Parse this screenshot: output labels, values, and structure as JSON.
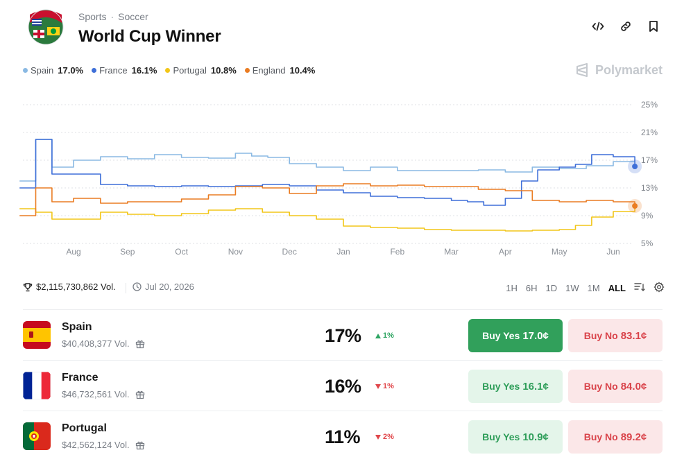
{
  "header": {
    "category": "Sports",
    "separator": "·",
    "subcategory": "Soccer",
    "title": "World Cup Winner"
  },
  "legend": [
    {
      "name": "Spain",
      "value": "17.0%",
      "color": "#8ab9e3"
    },
    {
      "name": "France",
      "value": "16.1%",
      "color": "#3e6fd8"
    },
    {
      "name": "Portugal",
      "value": "10.8%",
      "color": "#f2c618"
    },
    {
      "name": "England",
      "value": "10.4%",
      "color": "#ea7c22"
    }
  ],
  "brand": "Polymarket",
  "chart_data": {
    "type": "line",
    "x_ticks": [
      "Aug",
      "Sep",
      "Oct",
      "Nov",
      "Dec",
      "Jan",
      "Feb",
      "Mar",
      "Apr",
      "May",
      "Jun"
    ],
    "y_ticks": [
      "25%",
      "21%",
      "17%",
      "13%",
      "9%",
      "5%"
    ],
    "ylim": [
      5,
      25
    ],
    "grid": true,
    "series": [
      {
        "name": "Spain",
        "color": "#8ab9e3",
        "x": [
          0,
          0.3,
          0.6,
          1,
          1.5,
          2,
          2.5,
          3,
          3.5,
          4,
          4.3,
          4.6,
          5,
          5.5,
          6,
          6.5,
          7,
          7.5,
          8,
          8.5,
          9,
          9.5,
          10,
          10.5,
          11,
          11.4
        ],
        "values": [
          14,
          20,
          16,
          17,
          17.5,
          17.2,
          17.8,
          17.4,
          17.3,
          18,
          17.6,
          17.4,
          16.5,
          16,
          15.5,
          16,
          15.5,
          15.5,
          15.5,
          15.6,
          15.3,
          16,
          15.8,
          16.2,
          16.8,
          17
        ]
      },
      {
        "name": "France",
        "color": "#3e6fd8",
        "x": [
          0,
          0.3,
          0.6,
          1,
          1.5,
          2,
          2.5,
          3,
          3.5,
          4,
          4.5,
          5,
          5.5,
          6,
          6.5,
          7,
          7.5,
          8,
          8.3,
          8.6,
          9,
          9.3,
          9.6,
          10,
          10.3,
          10.6,
          11,
          11.4
        ],
        "values": [
          13,
          20,
          15,
          15,
          13.5,
          13.3,
          13.2,
          13.3,
          13.2,
          13.3,
          13.5,
          13.3,
          12.7,
          12.3,
          11.8,
          11.6,
          11.5,
          11.2,
          11,
          10.5,
          11.5,
          14,
          15.6,
          16,
          16.4,
          17.8,
          17.5,
          16.1
        ]
      },
      {
        "name": "Portugal",
        "color": "#f2c618",
        "x": [
          0,
          0.3,
          0.6,
          1,
          1.5,
          2,
          2.5,
          3,
          3.5,
          4,
          4.5,
          5,
          5.5,
          6,
          6.5,
          7,
          7.5,
          8,
          8.5,
          9,
          9.5,
          10,
          10.3,
          10.6,
          11,
          11.4
        ],
        "values": [
          10,
          9.5,
          8.5,
          8.5,
          9.5,
          9.2,
          9,
          9.3,
          9.8,
          10,
          9.5,
          9,
          8.5,
          7.5,
          7.3,
          7.2,
          7,
          6.9,
          6.9,
          6.8,
          6.9,
          7,
          7.6,
          8.8,
          9.6,
          10.8
        ]
      },
      {
        "name": "England",
        "color": "#ea7c22",
        "x": [
          0,
          0.3,
          0.6,
          1,
          1.5,
          2,
          2.5,
          3,
          3.5,
          4,
          4.5,
          5,
          5.5,
          6,
          6.5,
          7,
          7.5,
          8,
          8.5,
          9,
          9.5,
          10,
          10.5,
          11,
          11.4
        ],
        "values": [
          9,
          13,
          11,
          11.5,
          10.8,
          11,
          11,
          11.4,
          12,
          13.2,
          13,
          12.2,
          13.3,
          13.6,
          13.3,
          13.4,
          13.2,
          13.2,
          12.8,
          12.6,
          11.2,
          11,
          11.2,
          11,
          10.4
        ]
      }
    ]
  },
  "stats": {
    "volume": "$2,115,730,862 Vol.",
    "date": "Jul 20, 2026"
  },
  "ranges": [
    "1H",
    "6H",
    "1D",
    "1W",
    "1M",
    "ALL"
  ],
  "active_range": "ALL",
  "outcomes": [
    {
      "name": "Spain",
      "volume": "$40,408,377 Vol.",
      "percent": "17%",
      "change": "1%",
      "direction": "up",
      "yes_label": "Buy Yes",
      "yes_price": "17.0¢",
      "no_label": "Buy No",
      "no_price": "83.1¢",
      "yes_style": "solid"
    },
    {
      "name": "France",
      "volume": "$46,732,561 Vol.",
      "percent": "16%",
      "change": "1%",
      "direction": "down",
      "yes_label": "Buy Yes",
      "yes_price": "16.1¢",
      "no_label": "Buy No",
      "no_price": "84.0¢",
      "yes_style": "soft"
    },
    {
      "name": "Portugal",
      "volume": "$42,562,124 Vol.",
      "percent": "11%",
      "change": "2%",
      "direction": "down",
      "yes_label": "Buy Yes",
      "yes_price": "10.9¢",
      "no_label": "Buy No",
      "no_price": "89.2¢",
      "yes_style": "soft"
    }
  ]
}
